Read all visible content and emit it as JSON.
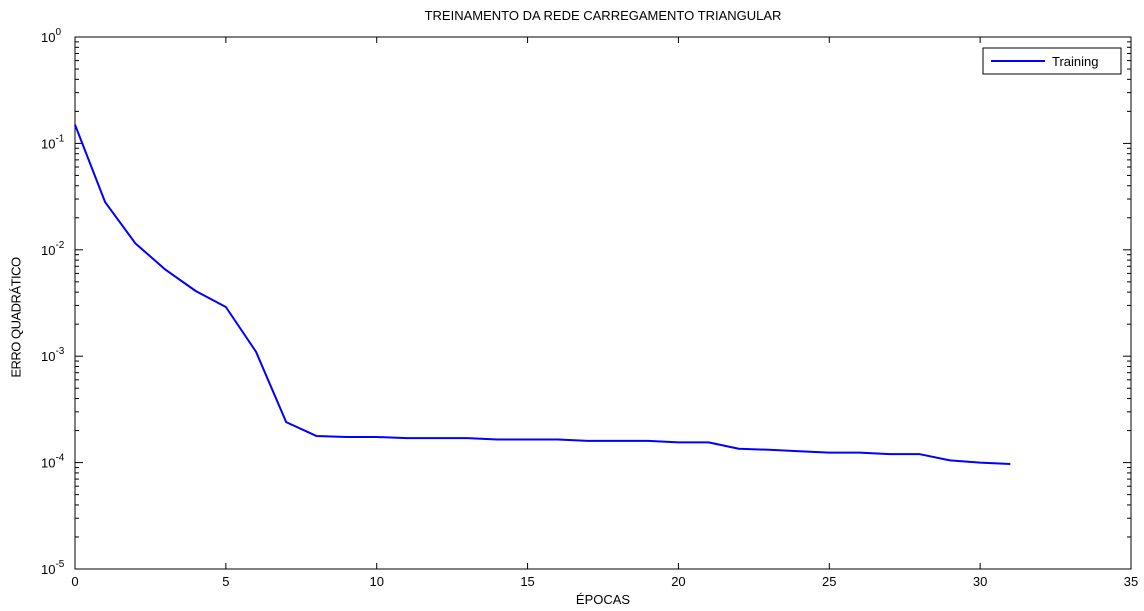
{
  "chart_data": {
    "type": "line",
    "title": "TREINAMENTO DA REDE CARREGAMENTO TRIANGULAR",
    "xlabel": "ÉPOCAS",
    "ylabel": "ERRO QUADRÁTICO",
    "xlim": [
      0,
      35
    ],
    "ylim": [
      1e-05,
      1
    ],
    "yscale": "log",
    "grid": false,
    "legend_position": "top-right",
    "x_ticks": [
      0,
      5,
      10,
      15,
      20,
      25,
      30,
      35
    ],
    "y_ticks": [
      {
        "base": "10",
        "exp": "0",
        "value": 1
      },
      {
        "base": "10",
        "exp": "-1",
        "value": 0.1
      },
      {
        "base": "10",
        "exp": "-2",
        "value": 0.01
      },
      {
        "base": "10",
        "exp": "-3",
        "value": 0.001
      },
      {
        "base": "10",
        "exp": "-4",
        "value": 0.0001
      },
      {
        "base": "10",
        "exp": "-5",
        "value": 1e-05
      }
    ],
    "series": [
      {
        "name": "Training",
        "color": "#0000ff",
        "x": [
          0,
          1,
          2,
          3,
          4,
          5,
          6,
          7,
          8,
          9,
          10,
          11,
          12,
          13,
          14,
          15,
          16,
          17,
          18,
          19,
          20,
          21,
          22,
          23,
          24,
          25,
          26,
          27,
          28,
          29,
          30,
          31
        ],
        "y": [
          0.15,
          0.028,
          0.0115,
          0.0065,
          0.0041,
          0.0029,
          0.0011,
          0.00024,
          0.000178,
          0.000174,
          0.000174,
          0.00017,
          0.00017,
          0.00017,
          0.000165,
          0.000165,
          0.000165,
          0.00016,
          0.00016,
          0.00016,
          0.000155,
          0.000155,
          0.000135,
          0.000132,
          0.000128,
          0.000124,
          0.000124,
          0.00012,
          0.00012,
          0.000105,
          0.0001,
          9.7e-05
        ]
      }
    ]
  }
}
